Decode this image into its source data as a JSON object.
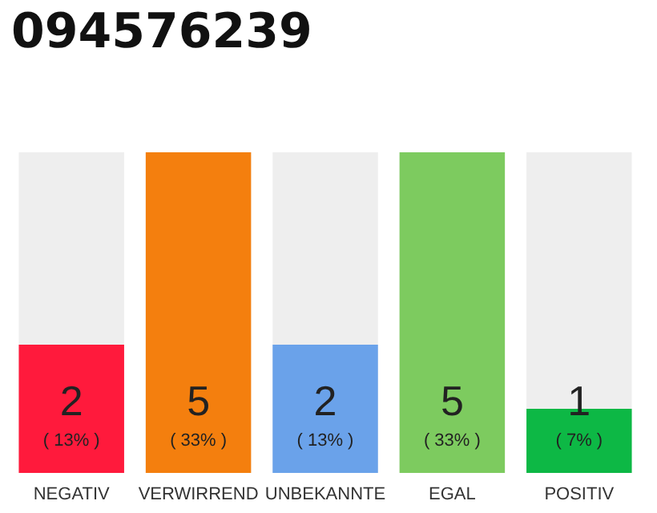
{
  "chart_data": {
    "type": "bar",
    "title": "094576239",
    "categories": [
      "NEGATIV",
      "VERWIRREND",
      "UNBEKANNTE",
      "EGAL",
      "POSITIV"
    ],
    "values": [
      2,
      5,
      2,
      5,
      1
    ],
    "colors": [
      "#ff1a3c",
      "#f47f0e",
      "#6aa2ea",
      "#7dcb5f",
      "#0db845"
    ],
    "value_labels": [
      "2\n( 13% )",
      "5\n( 33% )",
      "2\n( 13% )",
      "5\n( 33% )",
      "1\n( 7% )"
    ],
    "ylim": [
      0,
      5
    ],
    "tick_labels": "x"
  }
}
